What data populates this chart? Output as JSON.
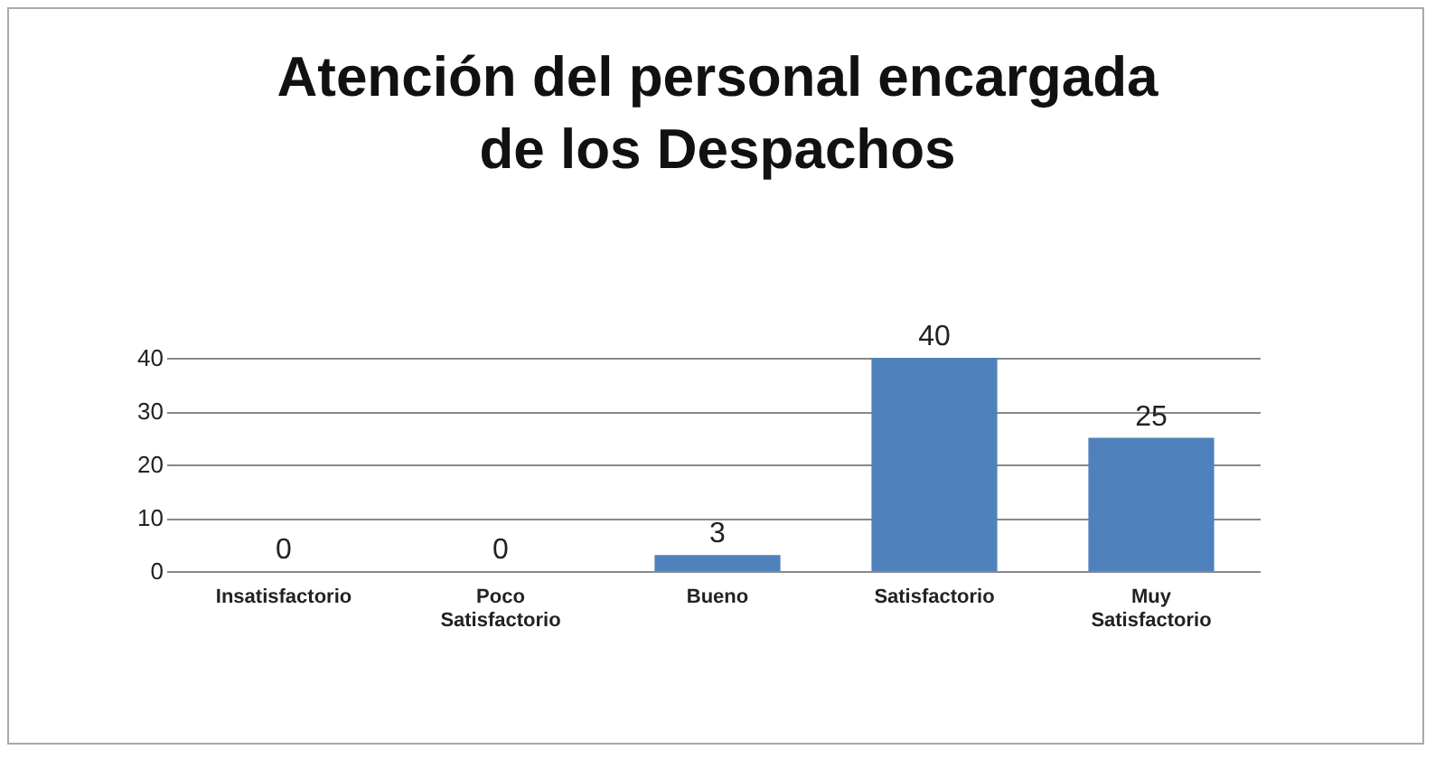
{
  "chart_data": {
    "type": "bar",
    "title": "Atención del personal encargada de los Despachos",
    "categories": [
      "Insatisfactorio",
      "Poco Satisfactorio",
      "Bueno",
      "Satisfactorio",
      "Muy Satisfactorio"
    ],
    "values": [
      0,
      0,
      3,
      40,
      25
    ],
    "color": "#4f81bd",
    "ylim": [
      0,
      40
    ],
    "yticks": [
      0,
      10,
      20,
      30,
      40
    ],
    "grid": "y",
    "data_labels": true
  }
}
